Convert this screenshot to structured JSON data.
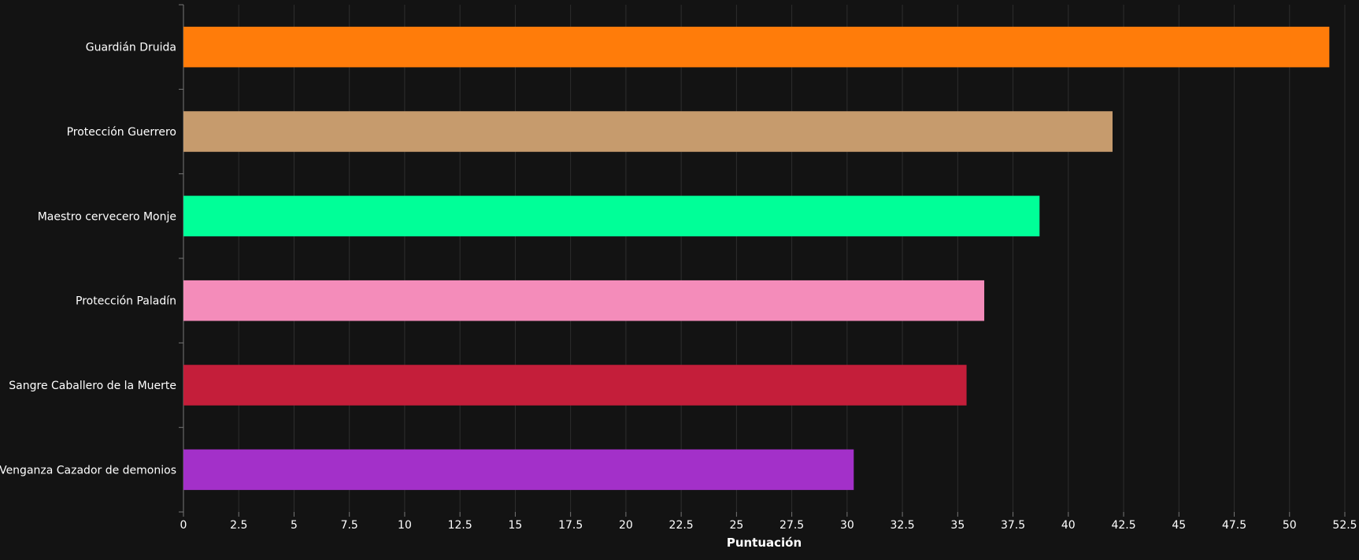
{
  "chart_data": {
    "type": "bar",
    "orientation": "horizontal",
    "categories": [
      "Guardián Druida",
      "Protección Guerrero",
      "Maestro cervecero Monje",
      "Protección Paladín",
      "Sangre Caballero de la Muerte",
      "Venganza Cazador de demonios"
    ],
    "values": [
      51.8,
      42.0,
      38.7,
      36.2,
      35.4,
      30.3
    ],
    "colors": [
      "#FF7C0A",
      "#C69B6D",
      "#00FF98",
      "#F48CBA",
      "#C41E3A",
      "#A330C9"
    ],
    "title": "",
    "xlabel": "Puntuación",
    "ylabel": "",
    "xlim": [
      0,
      52.5
    ],
    "ticks": [
      "0",
      "2.5",
      "5",
      "7.5",
      "10",
      "12.5",
      "15",
      "17.5",
      "20",
      "22.5",
      "25",
      "27.5",
      "30",
      "32.5",
      "35",
      "37.5",
      "40",
      "42.5",
      "45",
      "47.5",
      "50",
      "52.5"
    ],
    "grid": true,
    "legend": "none",
    "background": "#131313",
    "grid_color": "#2e2e2e",
    "text_color": "#ffffff"
  }
}
